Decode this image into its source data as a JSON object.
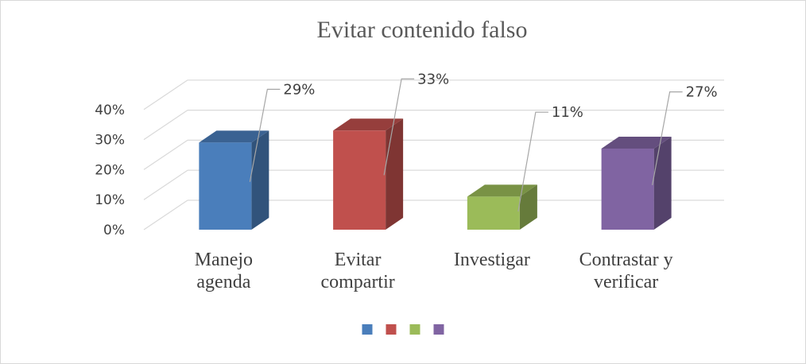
{
  "chart_data": {
    "type": "bar",
    "title": "Evitar contenido falso",
    "categories": [
      "Manejo agenda",
      "Evitar compartir",
      "Investigar",
      "Contrastar y verificar"
    ],
    "values": [
      29,
      33,
      11,
      27
    ],
    "value_labels": [
      "29%",
      "33%",
      "11%",
      "27%"
    ],
    "colors": [
      "#4a7ebb",
      "#c0504d",
      "#9bbb59",
      "#8064a2"
    ],
    "ylim": [
      0,
      40
    ],
    "yticks": [
      "0%",
      "10%",
      "20%",
      "30%",
      "40%"
    ],
    "grid": true,
    "legend": "bottom"
  }
}
